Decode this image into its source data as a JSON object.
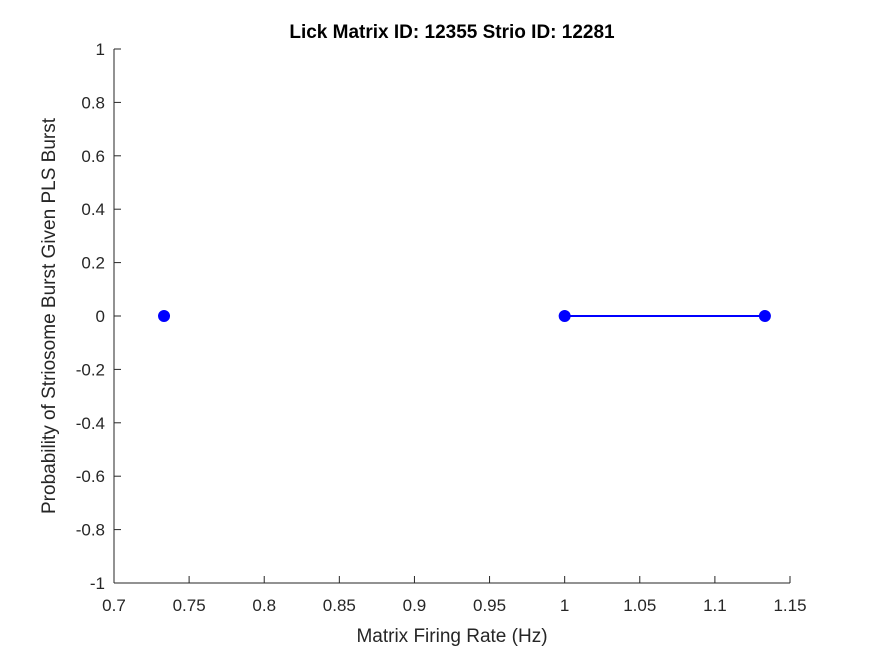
{
  "chart_data": {
    "type": "line",
    "title": "Lick Matrix ID: 12355 Strio ID: 12281",
    "xlabel": "Matrix Firing Rate (Hz)",
    "ylabel": "Probability of Striosome Burst Given PLS Burst",
    "xlim": [
      0.7,
      1.15
    ],
    "ylim": [
      -1,
      1
    ],
    "xticks": [
      0.7,
      0.75,
      0.8,
      0.85,
      0.9,
      0.95,
      1,
      1.05,
      1.1,
      1.15
    ],
    "xtick_labels": [
      "0.7",
      "0.75",
      "0.8",
      "0.85",
      "0.9",
      "0.95",
      "1",
      "1.05",
      "1.1",
      "1.15"
    ],
    "yticks": [
      1,
      0.8,
      0.6,
      0.4,
      0.2,
      0,
      -0.2,
      -0.4,
      -0.6,
      -0.8,
      -1
    ],
    "ytick_labels": [
      "1",
      "0.8",
      "0.6",
      "0.4",
      "0.2",
      "0",
      "-0.2",
      "-0.4",
      "-0.6",
      "-0.8",
      "-1"
    ],
    "grid": false,
    "legend": "none",
    "series": [
      {
        "color": "#0000ff",
        "marker": "filled-circle",
        "x": [
          0.7333,
          1.0,
          1.1333
        ],
        "y": [
          0,
          0,
          0
        ],
        "segments": [
          [
            0
          ],
          [
            1,
            2
          ]
        ]
      }
    ]
  }
}
